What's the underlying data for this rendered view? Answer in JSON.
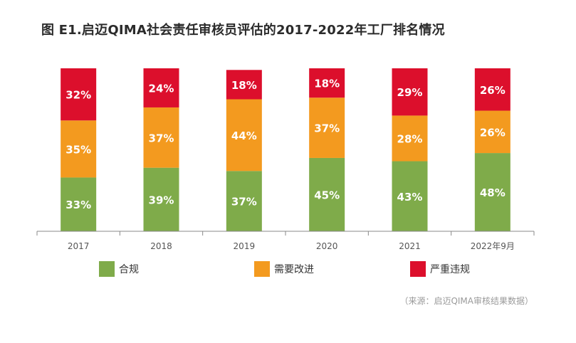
{
  "title": "图 E1.启迈QIMA社会责任审核员评估的2017-2022年工厂排名情况",
  "source": "（来源：启迈QIMA审核结果数据）",
  "colors": {
    "compliant": "#7fab4a",
    "needs_improvement": "#f39a1f",
    "serious_violation": "#dc0f2c",
    "axis": "#888888",
    "label_text": "#ffffff"
  },
  "legend": [
    {
      "key": "compliant",
      "label": "合规"
    },
    {
      "key": "needs_improvement",
      "label": "需要改进"
    },
    {
      "key": "serious_violation",
      "label": "严重违规"
    }
  ],
  "chart_data": {
    "type": "bar",
    "stacked": true,
    "categories": [
      "2017",
      "2018",
      "2019",
      "2020",
      "2021",
      "2022年9月"
    ],
    "series": [
      {
        "name": "合规",
        "key": "compliant",
        "values": [
          33,
          39,
          37,
          45,
          43,
          48
        ]
      },
      {
        "name": "需要改进",
        "key": "needs_improvement",
        "values": [
          35,
          37,
          44,
          37,
          28,
          26
        ]
      },
      {
        "name": "严重违规",
        "key": "serious_violation",
        "values": [
          32,
          24,
          18,
          18,
          29,
          26
        ]
      }
    ],
    "ylim": [
      0,
      100
    ],
    "value_suffix": "%",
    "legend_position": "bottom",
    "grid": false
  }
}
